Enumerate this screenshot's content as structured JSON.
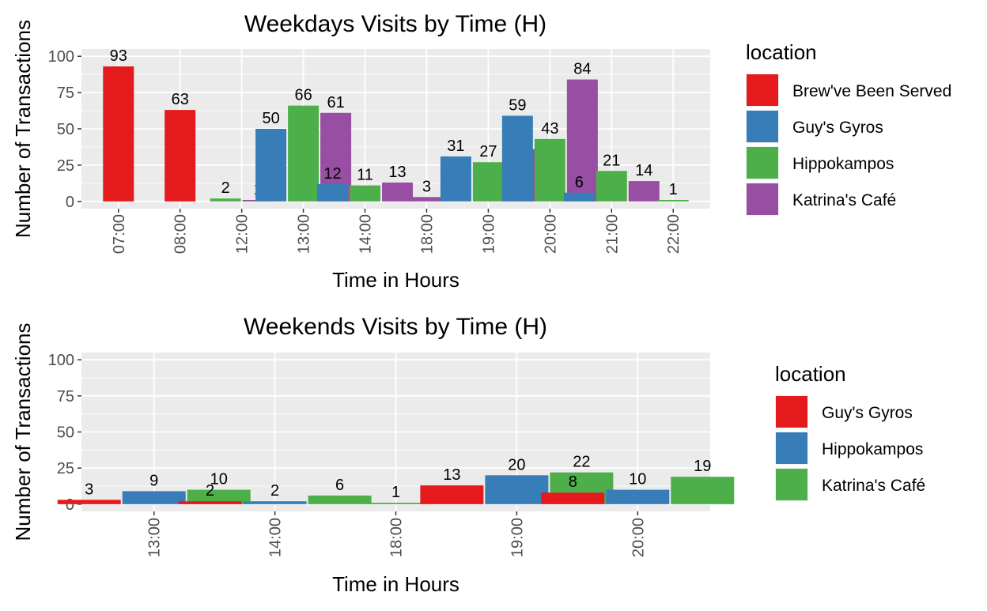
{
  "chart_data": [
    {
      "type": "bar",
      "title": "Weekdays Visits by Time (H)",
      "xlabel": "Time in Hours",
      "ylabel": "Number of Transactions",
      "ylim": [
        0,
        100
      ],
      "yticks": [
        0,
        25,
        50,
        75,
        100
      ],
      "grid": true,
      "legend_title": "location",
      "legend_position": "right",
      "categories": [
        "07:00",
        "08:00",
        "12:00",
        "13:00",
        "14:00",
        "18:00",
        "19:00",
        "20:00",
        "21:00",
        "22:00"
      ],
      "series": [
        {
          "name": "Brew've Been Served",
          "color": "#E41A1C",
          "values": [
            93,
            63,
            null,
            null,
            null,
            null,
            null,
            null,
            null,
            null
          ]
        },
        {
          "name": "Guy's Gyros",
          "color": "#377EB8",
          "values": [
            null,
            null,
            null,
            50,
            12,
            null,
            31,
            59,
            6,
            null
          ]
        },
        {
          "name": "Hippokampos",
          "color": "#4DAF4A",
          "values": [
            null,
            null,
            2,
            66,
            11,
            null,
            27,
            43,
            21,
            1
          ]
        },
        {
          "name": "Katrina's Café",
          "color": "#984EA3",
          "values": [
            null,
            null,
            1,
            61,
            13,
            3,
            36,
            84,
            14,
            null
          ]
        }
      ]
    },
    {
      "type": "bar",
      "title": "Weekends Visits by Time (H)",
      "xlabel": "Time in Hours",
      "ylabel": "Number of Transactions",
      "ylim": [
        0,
        100
      ],
      "yticks": [
        0,
        25,
        50,
        75,
        100
      ],
      "grid": true,
      "legend_title": "location",
      "legend_position": "right",
      "categories": [
        "13:00",
        "14:00",
        "18:00",
        "19:00",
        "20:00"
      ],
      "series": [
        {
          "name": "Guy's Gyros",
          "color": "#E41A1C",
          "values": [
            3,
            2,
            null,
            13,
            8
          ]
        },
        {
          "name": "Hippokampos",
          "color": "#377EB8",
          "values": [
            9,
            2,
            null,
            20,
            10
          ]
        },
        {
          "name": "Katrina's Café",
          "color": "#4DAF4A",
          "values": [
            10,
            6,
            1,
            22,
            19
          ]
        }
      ]
    }
  ]
}
